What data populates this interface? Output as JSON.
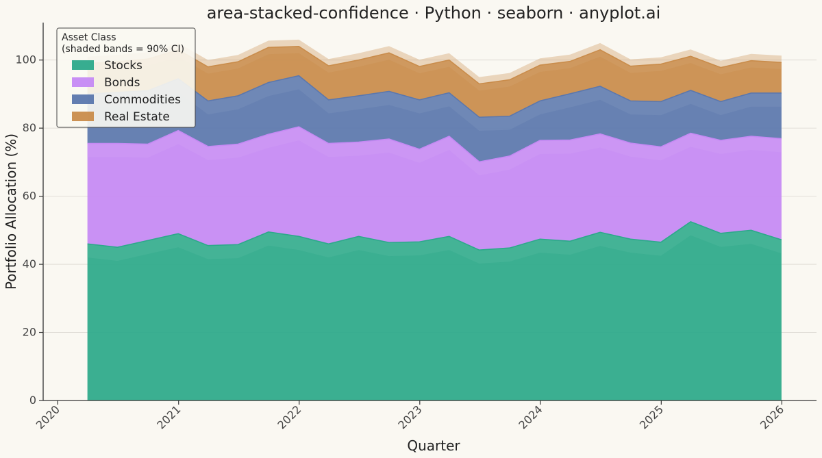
{
  "chart_data": {
    "type": "area",
    "title": "area-stacked-confidence · Python · seaborn · anyplot.ai",
    "xlabel": "Quarter",
    "ylabel": "Portfolio Allocation (%)",
    "xlim": [
      "2019-11-18",
      "2026-04-16"
    ],
    "ylim": [
      0,
      111
    ],
    "xticks": [
      "2020",
      "2021",
      "2022",
      "2023",
      "2024",
      "2025",
      "2026"
    ],
    "yticks": [
      0,
      20,
      40,
      60,
      80,
      100
    ],
    "grid": "y",
    "legend": {
      "title_line1": "Asset Class",
      "title_line2": "(shaded bands = 90% CI)",
      "placement": "top-left"
    },
    "x": [
      "2020-03-31",
      "2020-06-30",
      "2020-09-30",
      "2020-12-31",
      "2021-03-31",
      "2021-06-30",
      "2021-09-30",
      "2021-12-31",
      "2022-03-31",
      "2022-06-30",
      "2022-09-30",
      "2022-12-31",
      "2023-03-31",
      "2023-06-30",
      "2023-09-30",
      "2023-12-31",
      "2024-03-31",
      "2024-06-30",
      "2024-09-30",
      "2024-12-31",
      "2025-03-31",
      "2025-06-30",
      "2025-09-30",
      "2025-12-31"
    ],
    "series": [
      {
        "name": "Stocks",
        "color": "#2ca98a",
        "values": [
          46.0,
          45.0,
          47.0,
          49.0,
          45.5,
          45.8,
          49.5,
          48.2,
          46.0,
          48.2,
          46.4,
          46.6,
          48.2,
          44.2,
          44.8,
          47.4,
          46.8,
          49.4,
          47.4,
          46.5,
          52.5,
          49.1,
          50.0,
          47.2
        ],
        "ci_lower": [
          42.0,
          41.0,
          43.0,
          45.0,
          41.5,
          41.8,
          45.5,
          44.2,
          42.0,
          44.2,
          42.4,
          42.6,
          44.2,
          40.2,
          40.8,
          43.4,
          42.8,
          45.4,
          43.4,
          42.5,
          48.5,
          45.1,
          46.0,
          43.2
        ],
        "ci_upper": [
          46.0,
          45.0,
          47.0,
          49.0,
          45.5,
          45.8,
          49.5,
          48.2,
          46.0,
          48.2,
          46.4,
          46.6,
          48.2,
          44.2,
          44.8,
          47.4,
          46.8,
          49.4,
          47.4,
          46.5,
          52.5,
          49.1,
          50.0,
          47.2
        ]
      },
      {
        "name": "Bonds",
        "color": "#c589f4",
        "values": [
          29.5,
          30.5,
          28.3,
          30.3,
          29.1,
          29.5,
          28.7,
          32.2,
          29.5,
          27.7,
          30.4,
          27.2,
          29.4,
          25.9,
          27.0,
          29.0,
          29.7,
          28.9,
          28.2,
          28.0,
          26.0,
          27.3,
          27.6,
          29.7
        ],
        "ci_lower": [
          25.5,
          26.5,
          24.3,
          26.3,
          25.1,
          25.5,
          24.7,
          28.2,
          25.5,
          23.7,
          26.4,
          23.2,
          25.4,
          21.9,
          23.0,
          25.0,
          25.7,
          24.9,
          24.2,
          24.0,
          22.0,
          23.3,
          23.6,
          25.7
        ],
        "ci_upper": [
          29.5,
          30.5,
          28.3,
          30.3,
          29.1,
          29.5,
          28.7,
          32.2,
          29.5,
          27.7,
          30.4,
          27.2,
          29.4,
          25.9,
          27.0,
          29.0,
          29.7,
          28.9,
          28.2,
          28.0,
          26.0,
          27.3,
          27.6,
          29.7
        ]
      },
      {
        "name": "Commodities",
        "color": "#5b77ad",
        "values": [
          14.5,
          15.0,
          15.7,
          15.2,
          13.4,
          14.2,
          15.2,
          15.0,
          12.8,
          13.6,
          14.0,
          14.5,
          12.8,
          13.1,
          11.7,
          11.6,
          13.6,
          14.0,
          12.4,
          13.3,
          12.6,
          11.4,
          12.7,
          13.4
        ],
        "ci_lower": [
          10.5,
          11.0,
          11.7,
          11.2,
          9.4,
          10.2,
          11.2,
          11.0,
          8.8,
          9.6,
          10.0,
          10.5,
          8.8,
          9.1,
          7.7,
          7.6,
          9.6,
          10.0,
          8.4,
          9.3,
          8.6,
          7.4,
          8.7,
          9.4
        ],
        "ci_upper": [
          14.5,
          15.0,
          15.7,
          15.2,
          13.4,
          14.2,
          15.2,
          15.0,
          12.8,
          13.6,
          14.0,
          14.5,
          12.8,
          13.1,
          11.7,
          11.6,
          13.6,
          14.0,
          12.4,
          13.3,
          12.6,
          11.4,
          12.7,
          13.4
        ]
      },
      {
        "name": "Real Estate",
        "color": "#c98c4b",
        "values": [
          9.0,
          9.0,
          9.3,
          8.5,
          10.0,
          10.0,
          10.3,
          8.6,
          10.0,
          10.5,
          11.3,
          9.8,
          9.6,
          9.8,
          10.7,
          10.5,
          9.5,
          10.7,
          10.2,
          11.0,
          10.0,
          10.0,
          9.5,
          9.0
        ],
        "ci_lower": [
          7.0,
          7.0,
          7.3,
          6.5,
          8.0,
          8.0,
          8.3,
          6.6,
          8.0,
          8.5,
          9.3,
          7.8,
          7.6,
          7.8,
          8.7,
          8.5,
          7.5,
          8.7,
          8.2,
          9.0,
          8.0,
          8.0,
          7.5,
          7.0
        ],
        "ci_upper": [
          11.0,
          11.0,
          11.3,
          10.5,
          12.0,
          12.0,
          12.3,
          10.6,
          12.0,
          12.5,
          13.3,
          11.8,
          11.6,
          11.8,
          12.7,
          12.5,
          11.5,
          12.7,
          12.2,
          13.0,
          12.0,
          12.0,
          11.5,
          11.0
        ]
      }
    ]
  }
}
